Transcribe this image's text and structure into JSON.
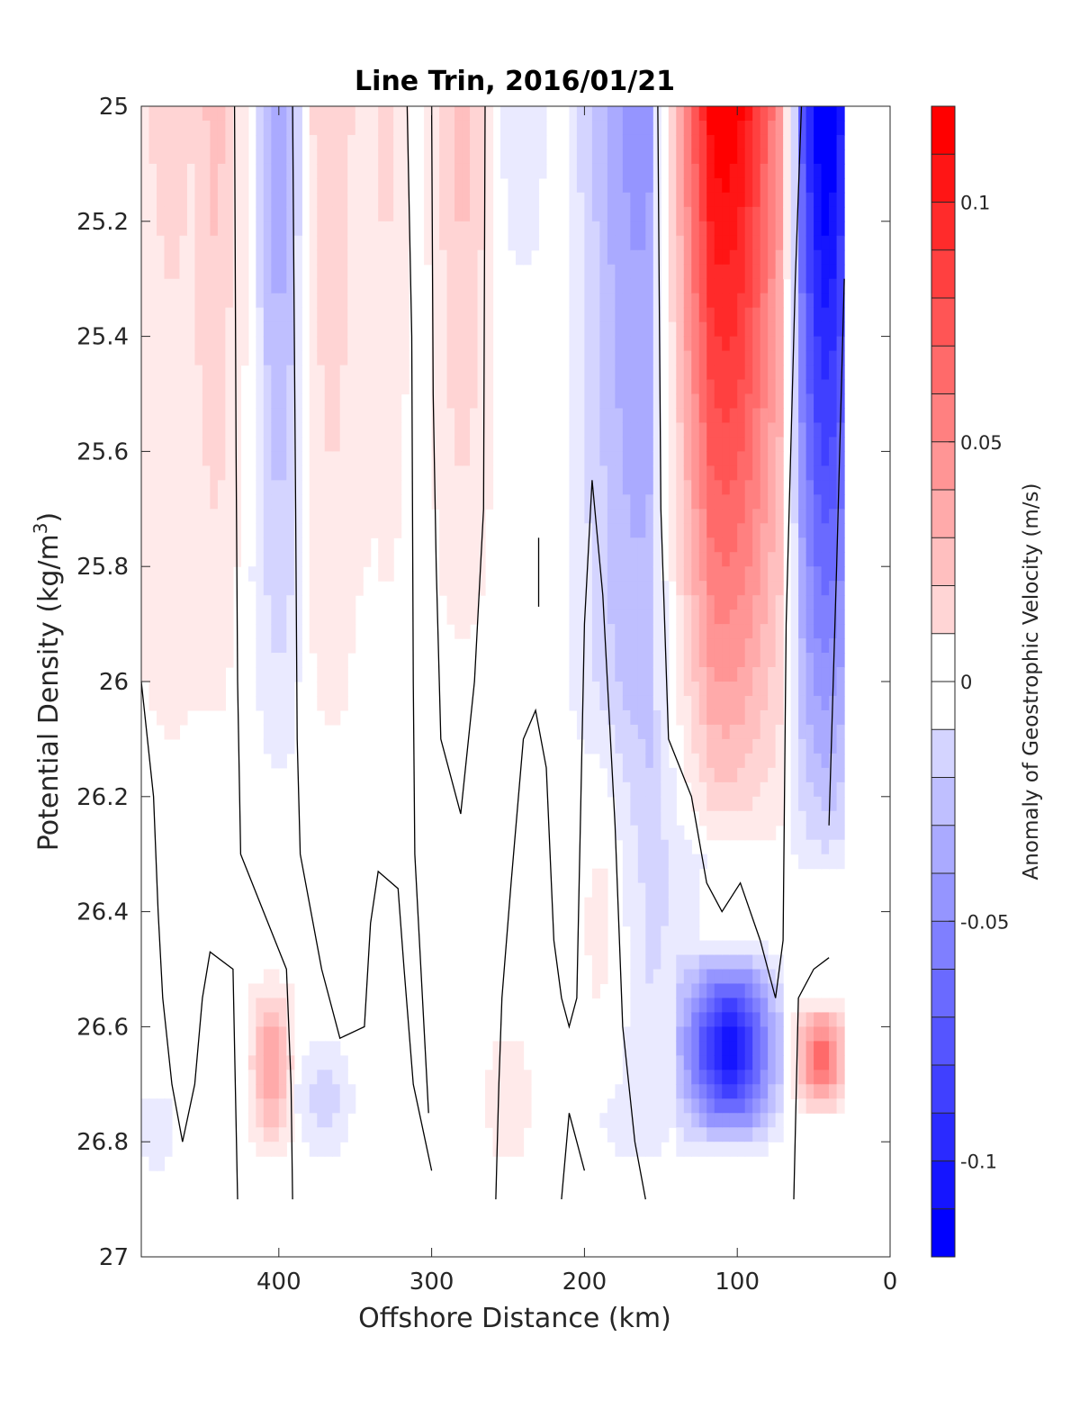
{
  "chart_data": {
    "type": "heatmap",
    "subtype": "filled-contour",
    "title": "Line Trin, 2016/01/21",
    "xlabel": "Offshore Distance (km)",
    "ylabel_main": "Potential Density (kg/m",
    "ylabel_sup": "3",
    "ylabel_close": ")",
    "colorbar_label": "Anomaly of Geostrophic Velocity (m/s)",
    "x_reversed": true,
    "y_reversed": true,
    "xlim": [
      490,
      0
    ],
    "ylim": [
      25,
      27
    ],
    "x_ticks": [
      400,
      300,
      200,
      100,
      0
    ],
    "y_ticks": [
      25,
      25.2,
      25.4,
      25.6,
      25.8,
      26,
      26.2,
      26.4,
      26.6,
      26.8,
      27
    ],
    "y_tick_labels": [
      "25",
      "25.2",
      "25.4",
      "25.6",
      "25.8",
      "26",
      "26.2",
      "26.4",
      "26.6",
      "26.8",
      "27"
    ],
    "clim": [
      -0.12,
      0.12
    ],
    "colorbar_ticks": [
      0.1,
      0.05,
      0,
      -0.05,
      -0.1
    ],
    "colorbar_tick_labels": [
      "0.1",
      "0.05",
      "0",
      "-0.05",
      "-0.1"
    ],
    "contour_step": 0.01,
    "zero_contour_color": "#000000",
    "positive_color": "#ff0000",
    "negative_color": "#0000ff",
    "neutral_color": "#ffffff",
    "data_extent": {
      "x_min": 30,
      "x_max": 490,
      "sigma_max": 26.9
    },
    "velocity_bands": [
      {
        "x_center": 470,
        "half_width": 35,
        "amplitude": 0.018,
        "sigma_top": 25.0,
        "sigma_bottom": 26.3
      },
      {
        "x_center": 420,
        "half_width": 8,
        "amplitude": 0.01,
        "sigma_top": 25.0,
        "sigma_bottom": 25.8
      },
      {
        "x_center": 440,
        "half_width": 12,
        "amplitude": 0.02,
        "sigma_top": 25.0,
        "sigma_bottom": 26.1
      },
      {
        "x_center": 400,
        "half_width": 15,
        "amplitude": -0.045,
        "sigma_top": 25.0,
        "sigma_bottom": 26.2
      },
      {
        "x_center": 365,
        "half_width": 18,
        "amplitude": 0.025,
        "sigma_top": 25.0,
        "sigma_bottom": 26.2
      },
      {
        "x_center": 330,
        "half_width": 14,
        "amplitude": 0.018,
        "sigma_top": 25.0,
        "sigma_bottom": 26.0
      },
      {
        "x_center": 280,
        "half_width": 18,
        "amplitude": 0.03,
        "sigma_top": 25.0,
        "sigma_bottom": 26.0
      },
      {
        "x_center": 240,
        "half_width": 14,
        "amplitude": -0.015,
        "sigma_top": 25.0,
        "sigma_bottom": 25.35
      },
      {
        "x_center": 165,
        "half_width": 35,
        "amplitude": -0.05,
        "sigma_top": 25.0,
        "sigma_bottom": 26.9
      },
      {
        "x_center": 185,
        "half_width": 20,
        "amplitude": 0.02,
        "sigma_top": 26.0,
        "sigma_bottom": 26.9
      },
      {
        "x_center": 108,
        "half_width": 38,
        "amplitude": 0.125,
        "sigma_top": 25.0,
        "sigma_bottom": 26.3
      },
      {
        "x_center": 105,
        "half_width": 28,
        "amplitude": -0.11,
        "sigma_top": 26.45,
        "sigma_bottom": 26.9
      },
      {
        "x_center": 42,
        "half_width": 22,
        "amplitude": -0.13,
        "sigma_top": 25.0,
        "sigma_bottom": 26.35
      },
      {
        "x_center": 45,
        "half_width": 14,
        "amplitude": 0.07,
        "sigma_top": 26.55,
        "sigma_bottom": 26.8
      },
      {
        "x_center": 405,
        "half_width": 12,
        "amplitude": 0.045,
        "sigma_top": 26.5,
        "sigma_bottom": 26.9
      },
      {
        "x_center": 370,
        "half_width": 15,
        "amplitude": -0.02,
        "sigma_top": 26.6,
        "sigma_bottom": 26.9
      },
      {
        "x_center": 250,
        "half_width": 14,
        "amplitude": 0.015,
        "sigma_top": 26.6,
        "sigma_bottom": 26.9
      },
      {
        "x_center": 480,
        "half_width": 10,
        "amplitude": -0.015,
        "sigma_top": 26.7,
        "sigma_bottom": 26.9
      }
    ],
    "zero_contours": [
      [
        [
          490,
          26.0
        ],
        [
          482,
          26.2
        ],
        [
          479,
          26.4
        ],
        [
          476,
          26.55
        ],
        [
          470,
          26.7
        ],
        [
          463,
          26.8
        ],
        [
          455,
          26.7
        ],
        [
          450,
          26.55
        ],
        [
          445,
          26.47
        ],
        [
          430,
          26.5
        ],
        [
          427,
          26.9
        ]
      ],
      [
        [
          429,
          25.0
        ],
        [
          428,
          25.6
        ],
        [
          427,
          26.0
        ],
        [
          425,
          26.3
        ],
        [
          410,
          26.4
        ],
        [
          395,
          26.5
        ],
        [
          392,
          26.7
        ],
        [
          391,
          26.9
        ]
      ],
      [
        [
          391,
          25.0
        ],
        [
          389,
          25.7
        ],
        [
          388,
          26.1
        ],
        [
          386,
          26.3
        ],
        [
          372,
          26.5
        ],
        [
          360,
          26.62
        ],
        [
          344,
          26.6
        ],
        [
          340,
          26.42
        ],
        [
          335,
          26.33
        ],
        [
          322,
          26.36
        ],
        [
          318,
          26.5
        ],
        [
          312,
          26.7
        ],
        [
          300,
          26.85
        ]
      ],
      [
        [
          316,
          25.0
        ],
        [
          313,
          25.4
        ],
        [
          312,
          26.0
        ],
        [
          311,
          26.3
        ],
        [
          306,
          26.55
        ],
        [
          302,
          26.75
        ]
      ],
      [
        [
          300,
          25.0
        ],
        [
          299,
          25.5
        ],
        [
          297,
          25.8
        ],
        [
          294,
          26.1
        ],
        [
          281,
          26.23
        ],
        [
          272,
          26.0
        ],
        [
          266,
          25.7
        ],
        [
          265,
          25.0
        ]
      ],
      [
        [
          230,
          25.75
        ],
        [
          230,
          25.87
        ]
      ],
      [
        [
          258,
          26.9
        ],
        [
          256,
          26.7
        ],
        [
          254,
          26.55
        ],
        [
          248,
          26.35
        ],
        [
          240,
          26.1
        ],
        [
          232,
          26.05
        ],
        [
          225,
          26.15
        ],
        [
          220,
          26.45
        ],
        [
          215,
          26.55
        ],
        [
          210,
          26.6
        ],
        [
          205,
          26.55
        ],
        [
          200,
          25.9
        ],
        [
          195,
          25.65
        ],
        [
          188,
          25.85
        ],
        [
          180,
          26.25
        ],
        [
          175,
          26.6
        ],
        [
          167,
          26.8
        ],
        [
          160,
          26.9
        ]
      ],
      [
        [
          215,
          26.9
        ],
        [
          210,
          26.75
        ],
        [
          205,
          26.8
        ],
        [
          200,
          26.85
        ]
      ],
      [
        [
          152,
          25.0
        ],
        [
          150,
          25.7
        ],
        [
          145,
          26.1
        ],
        [
          130,
          26.2
        ],
        [
          120,
          26.35
        ],
        [
          110,
          26.4
        ],
        [
          98,
          26.35
        ],
        [
          85,
          26.45
        ],
        [
          80,
          26.5
        ],
        [
          75,
          26.55
        ],
        [
          70,
          26.45
        ],
        [
          68,
          25.9
        ],
        [
          62,
          25.3
        ],
        [
          58,
          25.0
        ]
      ],
      [
        [
          63,
          26.9
        ],
        [
          60,
          26.55
        ],
        [
          50,
          26.5
        ],
        [
          40,
          26.48
        ]
      ],
      [
        [
          40,
          26.25
        ],
        [
          35,
          25.8
        ],
        [
          30,
          25.3
        ]
      ]
    ]
  }
}
